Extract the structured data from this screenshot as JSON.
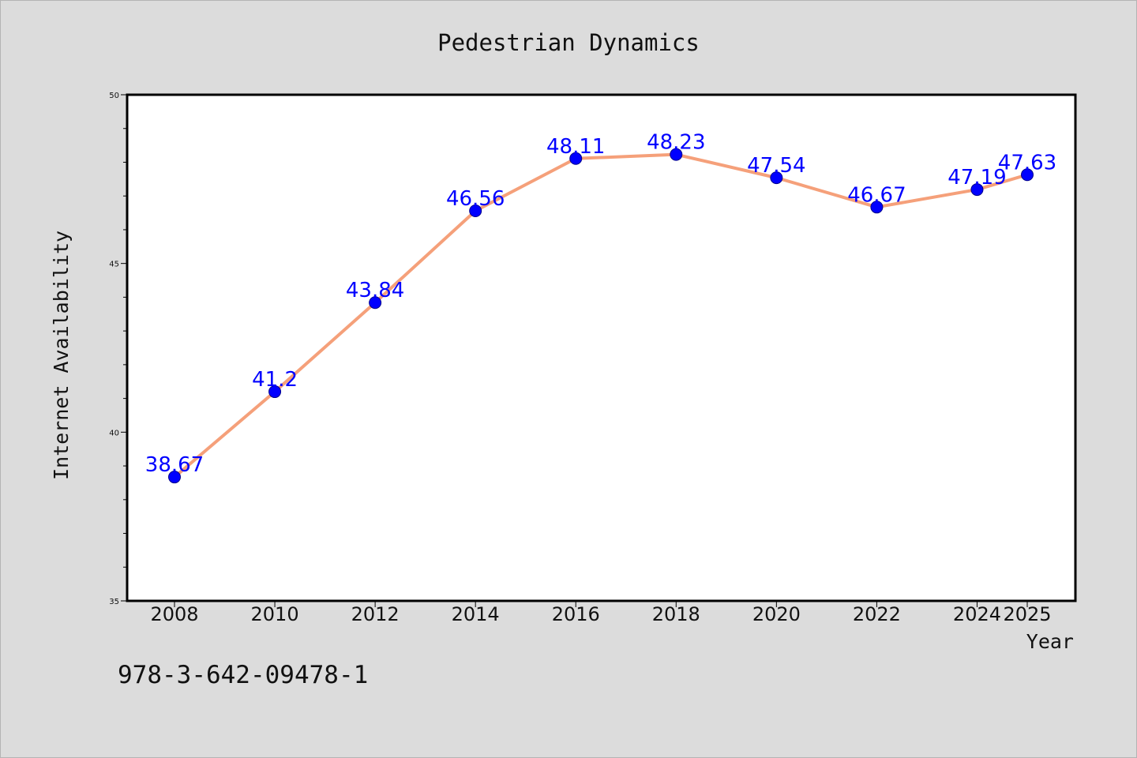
{
  "colors": {
    "background": "#dcdcdc",
    "plot_area": "#ffffff",
    "line": "#f5a07a",
    "marker": "#0000ff",
    "data_label": "#0000ff",
    "text": "#111111"
  },
  "footer": {
    "isbn": "978-3-642-09478-1"
  },
  "chart_data": {
    "type": "line",
    "title": "Pedestrian Dynamics",
    "xlabel": "Year",
    "ylabel": "Internet Availability",
    "x": [
      "2008",
      "2010",
      "2012",
      "2014",
      "2016",
      "2018",
      "2020",
      "2022",
      "2024",
      "2025"
    ],
    "series": [
      {
        "values": [
          38.67,
          41.2,
          43.84,
          46.56,
          48.11,
          48.23,
          47.54,
          46.67,
          47.19,
          47.63
        ],
        "labels": [
          "38.67",
          "41.2",
          "43.84",
          "46.56",
          "48.11",
          "48.23",
          "47.54",
          "46.67",
          "47.19",
          "47.63"
        ]
      }
    ],
    "ylim": [
      35,
      50
    ],
    "yticks": [
      35,
      40,
      45,
      50
    ],
    "yminor_step": 1,
    "grid": false,
    "legend": "none"
  }
}
